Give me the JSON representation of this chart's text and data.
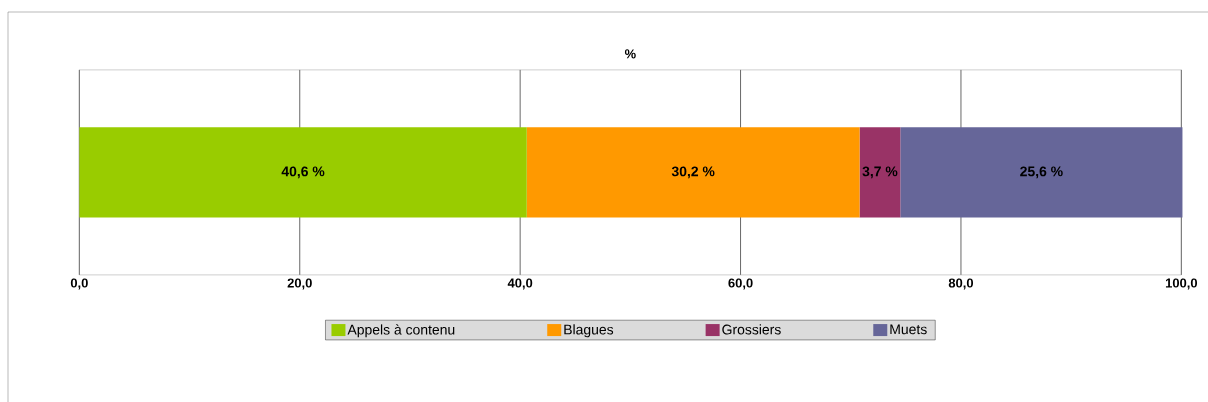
{
  "chart_data": {
    "type": "bar",
    "orientation": "horizontal",
    "stacked": true,
    "title": "%",
    "categories": [
      null
    ],
    "series": [
      {
        "name": "Appels à contenu",
        "color": "#99cc00",
        "values": [
          40.6
        ],
        "value_labels": [
          "40,6 %"
        ]
      },
      {
        "name": "Blagues",
        "color": "#ff9900",
        "values": [
          30.2
        ],
        "value_labels": [
          "30,2 %"
        ]
      },
      {
        "name": "Grossiers",
        "color": "#993366",
        "values": [
          3.7
        ],
        "value_labels": [
          "3,7 %"
        ]
      },
      {
        "name": "Muets",
        "color": "#666699",
        "values": [
          25.6
        ],
        "value_labels": [
          "25,6 %"
        ]
      }
    ],
    "xlim": [
      0,
      100
    ],
    "xticks": [
      {
        "value": 0,
        "label": "0,0"
      },
      {
        "value": 20,
        "label": "20,0"
      },
      {
        "value": 40,
        "label": "40,0"
      },
      {
        "value": 60,
        "label": "60,0"
      },
      {
        "value": 80,
        "label": "80,0"
      },
      {
        "value": 100,
        "label": "100,0"
      }
    ],
    "grid": "x",
    "legend": "bottom"
  }
}
